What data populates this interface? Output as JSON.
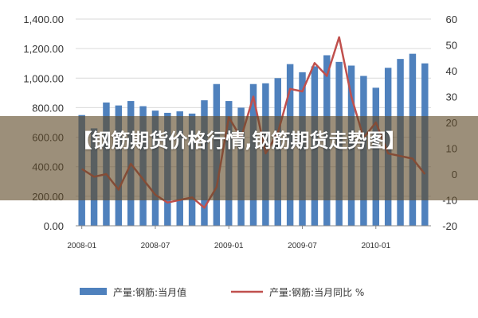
{
  "page_title": "【钢筋期货价格行情,钢筋期货走势图】",
  "chart_data": {
    "type": "bar+line",
    "left_axis": {
      "ticks": [
        "1,400.00",
        "1,200.00",
        "1,000.00",
        "800.00",
        "600.00",
        "400.00",
        "200.00",
        "0.00"
      ],
      "ylim": [
        0,
        1400
      ]
    },
    "right_axis": {
      "ticks": [
        "60",
        "50",
        "40",
        "30",
        "20",
        "10",
        "0",
        "-10",
        "-20"
      ],
      "ylim": [
        -20,
        60
      ]
    },
    "x_tick_labels": [
      "2008-01",
      "2008-07",
      "2009-01",
      "2009-07",
      "2010-01"
    ],
    "series": [
      {
        "name": "产量:钢筋:当月值",
        "type": "bar",
        "axis": "left",
        "color": "#4f81bd",
        "values": [
          750,
          660,
          835,
          815,
          845,
          810,
          780,
          765,
          775,
          760,
          850,
          960,
          845,
          800,
          960,
          965,
          1000,
          1095,
          1040,
          1080,
          1155,
          1110,
          1085,
          1015,
          935,
          1070,
          1130,
          1165,
          1100
        ]
      },
      {
        "name": "产量:钢筋:当月同比 %",
        "type": "line",
        "axis": "right",
        "color": "#c0504d",
        "values": [
          2,
          -1,
          0,
          -6,
          4,
          -2,
          -8,
          -11,
          -10,
          -9,
          -13,
          -5,
          22,
          14,
          30,
          8,
          16,
          33,
          32,
          43,
          38,
          53,
          30,
          14,
          20,
          8,
          7,
          6,
          0
        ]
      }
    ]
  }
}
